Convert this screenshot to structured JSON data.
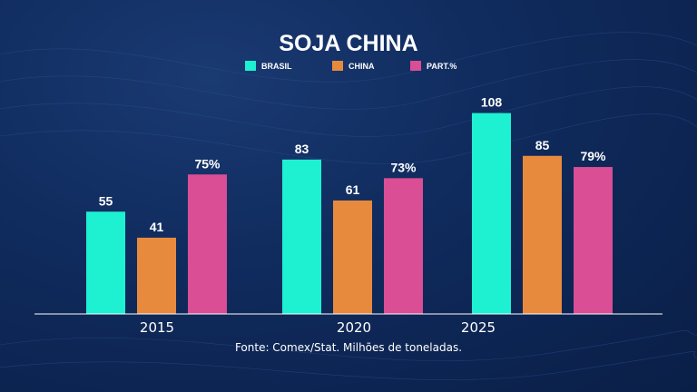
{
  "chart_data": {
    "type": "bar",
    "title": "SOJA CHINA",
    "categories": [
      "2015",
      "2020",
      "2025"
    ],
    "series": [
      {
        "name": "BRASIL",
        "color": "#1ef0d2",
        "values": [
          55,
          83,
          108
        ],
        "labels": [
          "55",
          "83",
          "108"
        ]
      },
      {
        "name": "CHINA",
        "color": "#e88a3e",
        "values": [
          41,
          61,
          85
        ],
        "labels": [
          "41",
          "61",
          "85"
        ]
      },
      {
        "name": "PART.%",
        "color": "#d94e95",
        "values": [
          75,
          73,
          79
        ],
        "labels": [
          "75%",
          "73%",
          "79%"
        ]
      }
    ],
    "legend_position": "top-center",
    "grid": false,
    "source": "Fonte: Comex/Stat. Milhões de toneladas."
  },
  "colors": {
    "background": "#0f2a5c",
    "axis": "#ffffff"
  }
}
